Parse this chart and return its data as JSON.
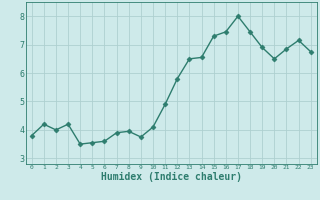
{
  "x": [
    0,
    1,
    2,
    3,
    4,
    5,
    6,
    7,
    8,
    9,
    10,
    11,
    12,
    13,
    14,
    15,
    16,
    17,
    18,
    19,
    20,
    21,
    22,
    23
  ],
  "y": [
    3.8,
    4.2,
    4.0,
    4.2,
    3.5,
    3.55,
    3.6,
    3.9,
    3.95,
    3.75,
    4.1,
    4.9,
    5.8,
    6.5,
    6.55,
    7.3,
    7.45,
    8.0,
    7.45,
    6.9,
    6.5,
    6.85,
    7.15,
    6.75
  ],
  "line_color": "#2e7d6e",
  "marker": "D",
  "marker_size": 2.5,
  "bg_color": "#ceeaea",
  "grid_color": "#aed0d0",
  "tick_color": "#2e7d6e",
  "xlabel": "Humidex (Indice chaleur)",
  "xlabel_fontsize": 7,
  "ylim": [
    2.8,
    8.5
  ],
  "xlim": [
    -0.5,
    23.5
  ],
  "yticks": [
    3,
    4,
    5,
    6,
    7,
    8
  ],
  "xticks": [
    0,
    1,
    2,
    3,
    4,
    5,
    6,
    7,
    8,
    9,
    10,
    11,
    12,
    13,
    14,
    15,
    16,
    17,
    18,
    19,
    20,
    21,
    22,
    23
  ],
  "line_width": 1.0
}
